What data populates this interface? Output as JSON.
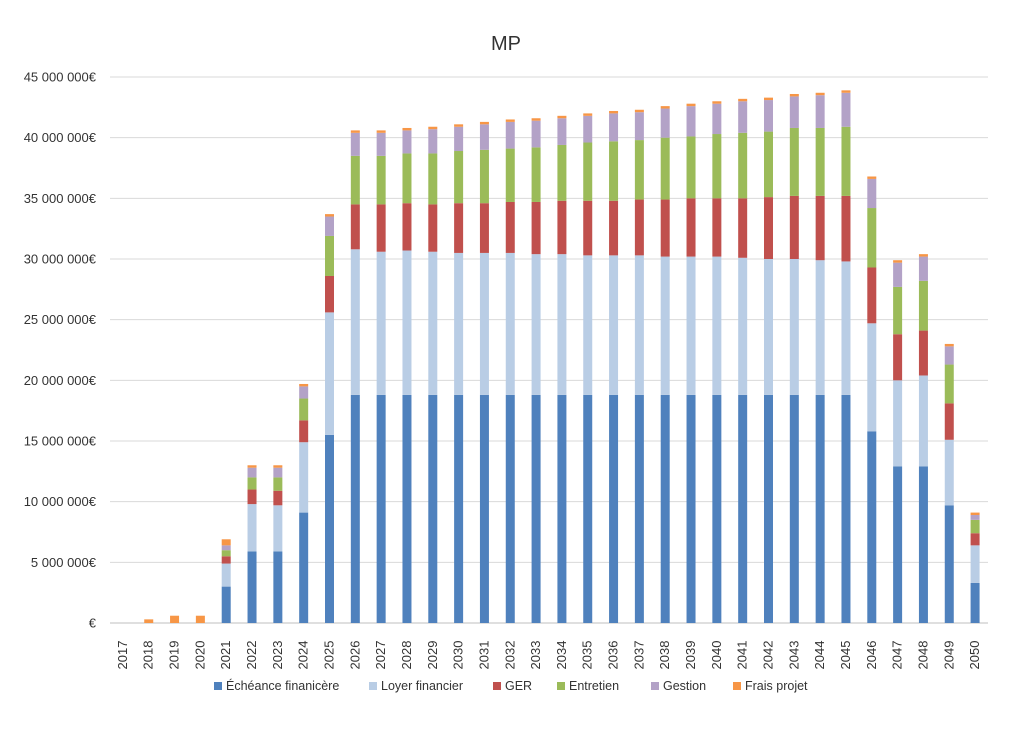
{
  "chart_data": {
    "type": "bar",
    "stacked": true,
    "title": "MP",
    "xlabel": "",
    "ylabel": "",
    "ylim": [
      0,
      45000000
    ],
    "y_ticks": [
      0,
      5000000,
      10000000,
      15000000,
      20000000,
      25000000,
      30000000,
      35000000,
      40000000,
      45000000
    ],
    "y_tick_labels": [
      "€",
      "5 000 000€",
      "10 000 000€",
      "15 000 000€",
      "20 000 000€",
      "25 000 000€",
      "30 000 000€",
      "35 000 000€",
      "40 000 000€",
      "45 000 000€"
    ],
    "grid": true,
    "legend_position": "bottom",
    "categories": [
      "2017",
      "2018",
      "2019",
      "2020",
      "2021",
      "2022",
      "2023",
      "2024",
      "2025",
      "2026",
      "2027",
      "2028",
      "2029",
      "2030",
      "2031",
      "2032",
      "2033",
      "2034",
      "2035",
      "2036",
      "2037",
      "2038",
      "2039",
      "2040",
      "2041",
      "2042",
      "2043",
      "2044",
      "2045",
      "2046",
      "2047",
      "2048",
      "2049",
      "2050"
    ],
    "series": [
      {
        "name": "Échéance finanicère",
        "color": "#4f81bd",
        "values": [
          0,
          0,
          0,
          0,
          3000000,
          5900000,
          5900000,
          9100000,
          15500000,
          18800000,
          18800000,
          18800000,
          18800000,
          18800000,
          18800000,
          18800000,
          18800000,
          18800000,
          18800000,
          18800000,
          18800000,
          18800000,
          18800000,
          18800000,
          18800000,
          18800000,
          18800000,
          18800000,
          18800000,
          15800000,
          12900000,
          12900000,
          9700000,
          3300000
        ]
      },
      {
        "name": "Loyer financier",
        "color": "#b9cde5",
        "values": [
          0,
          0,
          0,
          0,
          1900000,
          3900000,
          3800000,
          5800000,
          10100000,
          12000000,
          11800000,
          11900000,
          11800000,
          11700000,
          11700000,
          11700000,
          11600000,
          11600000,
          11500000,
          11500000,
          11500000,
          11400000,
          11400000,
          11400000,
          11300000,
          11200000,
          11200000,
          11100000,
          11000000,
          8900000,
          7100000,
          7500000,
          5400000,
          3100000
        ]
      },
      {
        "name": "GER",
        "color": "#c0504d",
        "values": [
          0,
          0,
          0,
          0,
          600000,
          1200000,
          1200000,
          1800000,
          3000000,
          3700000,
          3900000,
          3900000,
          3900000,
          4100000,
          4100000,
          4200000,
          4300000,
          4400000,
          4500000,
          4500000,
          4600000,
          4700000,
          4800000,
          4800000,
          4900000,
          5100000,
          5200000,
          5300000,
          5400000,
          4600000,
          3800000,
          3700000,
          3000000,
          1000000
        ]
      },
      {
        "name": "Entretien",
        "color": "#9bbb59",
        "values": [
          0,
          0,
          0,
          0,
          500000,
          1000000,
          1100000,
          1800000,
          3300000,
          4000000,
          4000000,
          4100000,
          4200000,
          4300000,
          4400000,
          4400000,
          4500000,
          4600000,
          4800000,
          4900000,
          4900000,
          5100000,
          5100000,
          5300000,
          5400000,
          5400000,
          5600000,
          5600000,
          5700000,
          4900000,
          3900000,
          4100000,
          3200000,
          1100000
        ]
      },
      {
        "name": "Gestion",
        "color": "#b3a2c7",
        "values": [
          0,
          0,
          0,
          0,
          400000,
          800000,
          800000,
          1000000,
          1600000,
          1900000,
          1900000,
          1900000,
          2000000,
          2000000,
          2100000,
          2200000,
          2200000,
          2200000,
          2200000,
          2300000,
          2300000,
          2400000,
          2500000,
          2500000,
          2600000,
          2600000,
          2600000,
          2700000,
          2800000,
          2400000,
          2000000,
          2000000,
          1500000,
          400000
        ]
      },
      {
        "name": "Frais projet",
        "color": "#f79646",
        "values": [
          0,
          300000,
          600000,
          600000,
          500000,
          200000,
          200000,
          200000,
          200000,
          200000,
          200000,
          200000,
          200000,
          200000,
          200000,
          200000,
          200000,
          200000,
          200000,
          200000,
          200000,
          200000,
          200000,
          200000,
          200000,
          200000,
          200000,
          200000,
          200000,
          200000,
          200000,
          200000,
          200000,
          200000
        ]
      }
    ]
  }
}
